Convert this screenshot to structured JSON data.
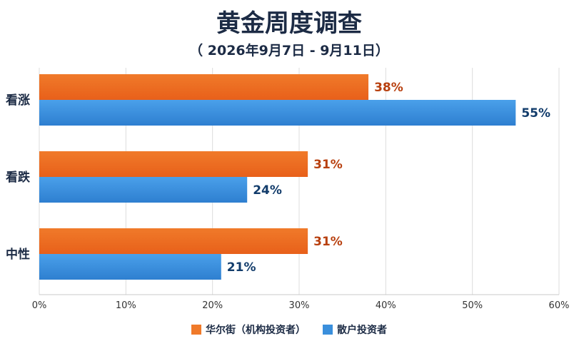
{
  "colors": {
    "wall_street": "#f07a2a",
    "retail": "#3a8fdc",
    "wall_street_label": "#b8400f",
    "retail_label": "#123c6b",
    "grid": "#dcdcdc",
    "text": "#1c2b45"
  },
  "chart_data": {
    "type": "bar",
    "orientation": "horizontal",
    "title": "黄金周度调查",
    "subtitle": "（ 2026年9月7日 - 9月11日）",
    "categories": [
      "看涨",
      "看跌",
      "中性"
    ],
    "series": [
      {
        "name": "华尔街（机构投资者）",
        "values": [
          38,
          31,
          31
        ],
        "labels": [
          "38%",
          "31%",
          "31%"
        ]
      },
      {
        "name": "散户投资者",
        "values": [
          55,
          24,
          21
        ],
        "labels": [
          "55%",
          "24%",
          "21%"
        ]
      }
    ],
    "xlim": [
      0,
      60
    ],
    "xticks": [
      "0%",
      "10%",
      "20%",
      "30%",
      "40%",
      "50%",
      "60%"
    ],
    "grid": true,
    "legend": "bottom-center"
  }
}
